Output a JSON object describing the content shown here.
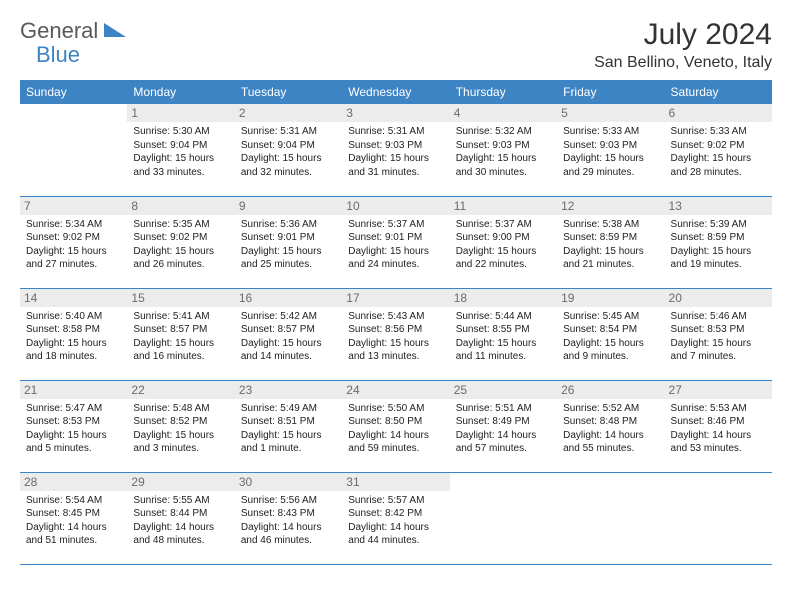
{
  "brand": {
    "part1": "General",
    "part2": "Blue"
  },
  "title": "July 2024",
  "location": "San Bellino, Veneto, Italy",
  "colors": {
    "accent": "#3d84c4",
    "daybg": "#ececec",
    "text": "#333333"
  },
  "weekdays": [
    "Sunday",
    "Monday",
    "Tuesday",
    "Wednesday",
    "Thursday",
    "Friday",
    "Saturday"
  ],
  "layout": {
    "first_weekday_index": 1,
    "days_in_month": 31
  },
  "days": {
    "1": {
      "sunrise": "5:30 AM",
      "sunset": "9:04 PM",
      "daylight": "15 hours and 33 minutes."
    },
    "2": {
      "sunrise": "5:31 AM",
      "sunset": "9:04 PM",
      "daylight": "15 hours and 32 minutes."
    },
    "3": {
      "sunrise": "5:31 AM",
      "sunset": "9:03 PM",
      "daylight": "15 hours and 31 minutes."
    },
    "4": {
      "sunrise": "5:32 AM",
      "sunset": "9:03 PM",
      "daylight": "15 hours and 30 minutes."
    },
    "5": {
      "sunrise": "5:33 AM",
      "sunset": "9:03 PM",
      "daylight": "15 hours and 29 minutes."
    },
    "6": {
      "sunrise": "5:33 AM",
      "sunset": "9:02 PM",
      "daylight": "15 hours and 28 minutes."
    },
    "7": {
      "sunrise": "5:34 AM",
      "sunset": "9:02 PM",
      "daylight": "15 hours and 27 minutes."
    },
    "8": {
      "sunrise": "5:35 AM",
      "sunset": "9:02 PM",
      "daylight": "15 hours and 26 minutes."
    },
    "9": {
      "sunrise": "5:36 AM",
      "sunset": "9:01 PM",
      "daylight": "15 hours and 25 minutes."
    },
    "10": {
      "sunrise": "5:37 AM",
      "sunset": "9:01 PM",
      "daylight": "15 hours and 24 minutes."
    },
    "11": {
      "sunrise": "5:37 AM",
      "sunset": "9:00 PM",
      "daylight": "15 hours and 22 minutes."
    },
    "12": {
      "sunrise": "5:38 AM",
      "sunset": "8:59 PM",
      "daylight": "15 hours and 21 minutes."
    },
    "13": {
      "sunrise": "5:39 AM",
      "sunset": "8:59 PM",
      "daylight": "15 hours and 19 minutes."
    },
    "14": {
      "sunrise": "5:40 AM",
      "sunset": "8:58 PM",
      "daylight": "15 hours and 18 minutes."
    },
    "15": {
      "sunrise": "5:41 AM",
      "sunset": "8:57 PM",
      "daylight": "15 hours and 16 minutes."
    },
    "16": {
      "sunrise": "5:42 AM",
      "sunset": "8:57 PM",
      "daylight": "15 hours and 14 minutes."
    },
    "17": {
      "sunrise": "5:43 AM",
      "sunset": "8:56 PM",
      "daylight": "15 hours and 13 minutes."
    },
    "18": {
      "sunrise": "5:44 AM",
      "sunset": "8:55 PM",
      "daylight": "15 hours and 11 minutes."
    },
    "19": {
      "sunrise": "5:45 AM",
      "sunset": "8:54 PM",
      "daylight": "15 hours and 9 minutes."
    },
    "20": {
      "sunrise": "5:46 AM",
      "sunset": "8:53 PM",
      "daylight": "15 hours and 7 minutes."
    },
    "21": {
      "sunrise": "5:47 AM",
      "sunset": "8:53 PM",
      "daylight": "15 hours and 5 minutes."
    },
    "22": {
      "sunrise": "5:48 AM",
      "sunset": "8:52 PM",
      "daylight": "15 hours and 3 minutes."
    },
    "23": {
      "sunrise": "5:49 AM",
      "sunset": "8:51 PM",
      "daylight": "15 hours and 1 minute."
    },
    "24": {
      "sunrise": "5:50 AM",
      "sunset": "8:50 PM",
      "daylight": "14 hours and 59 minutes."
    },
    "25": {
      "sunrise": "5:51 AM",
      "sunset": "8:49 PM",
      "daylight": "14 hours and 57 minutes."
    },
    "26": {
      "sunrise": "5:52 AM",
      "sunset": "8:48 PM",
      "daylight": "14 hours and 55 minutes."
    },
    "27": {
      "sunrise": "5:53 AM",
      "sunset": "8:46 PM",
      "daylight": "14 hours and 53 minutes."
    },
    "28": {
      "sunrise": "5:54 AM",
      "sunset": "8:45 PM",
      "daylight": "14 hours and 51 minutes."
    },
    "29": {
      "sunrise": "5:55 AM",
      "sunset": "8:44 PM",
      "daylight": "14 hours and 48 minutes."
    },
    "30": {
      "sunrise": "5:56 AM",
      "sunset": "8:43 PM",
      "daylight": "14 hours and 46 minutes."
    },
    "31": {
      "sunrise": "5:57 AM",
      "sunset": "8:42 PM",
      "daylight": "14 hours and 44 minutes."
    }
  },
  "labels": {
    "sunrise": "Sunrise:",
    "sunset": "Sunset:",
    "daylight": "Daylight:"
  }
}
